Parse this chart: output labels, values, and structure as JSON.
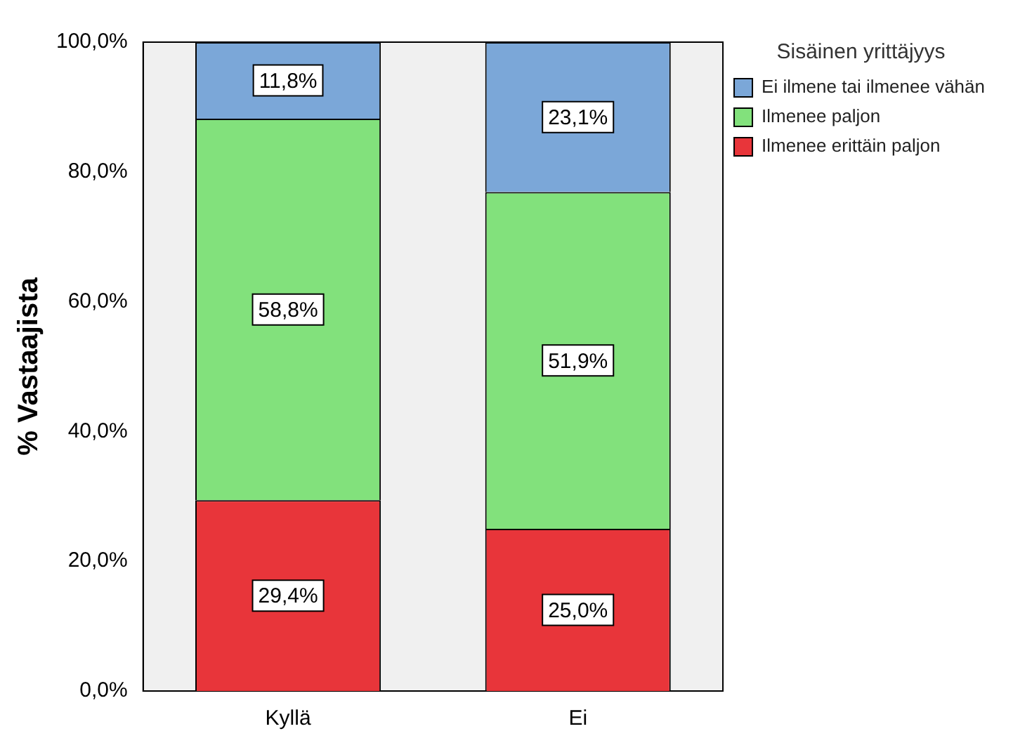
{
  "chart_data": {
    "type": "bar",
    "stacked": true,
    "ylabel": "% Vastaajista",
    "legend_title": "Sisäinen yrittäjyys",
    "legend": "right",
    "categories": [
      "Kyllä",
      "Ei"
    ],
    "series": [
      {
        "name": "Ilmenee erittäin paljon",
        "color": "#e8353a",
        "values": [
          29.4,
          25.0
        ],
        "value_labels": [
          "29,4%",
          "25,0%"
        ]
      },
      {
        "name": "Ilmenee paljon",
        "color": "#82e17c",
        "values": [
          58.8,
          51.9
        ],
        "value_labels": [
          "58,8%",
          "51,9%"
        ]
      },
      {
        "name": "Ei ilmene tai ilmenee vähän",
        "color": "#7ba7d8",
        "values": [
          11.8,
          23.1
        ],
        "value_labels": [
          "11,8%",
          "23,1%"
        ]
      }
    ],
    "ylim": [
      0,
      100
    ],
    "yticks": [
      {
        "value": 0,
        "label": "0,0%"
      },
      {
        "value": 20,
        "label": "20,0%"
      },
      {
        "value": 40,
        "label": "40,0%"
      },
      {
        "value": 60,
        "label": "60,0%"
      },
      {
        "value": 80,
        "label": "80,0%"
      },
      {
        "value": 100,
        "label": "100,0%"
      }
    ],
    "grid": false
  }
}
